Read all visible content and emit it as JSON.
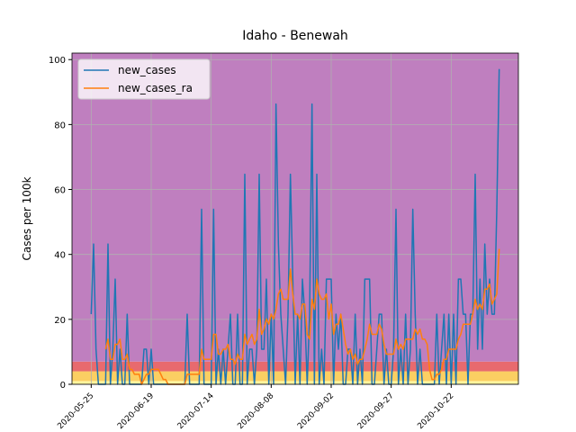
{
  "chart_data": {
    "type": "line",
    "title": "Idaho - Benewah",
    "ylabel": "Cases per 100k",
    "x": [
      "2020-05-25",
      "2020-05-26",
      "2020-05-27",
      "2020-05-28",
      "2020-05-29",
      "2020-05-30",
      "2020-05-31",
      "2020-06-01",
      "2020-06-02",
      "2020-06-03",
      "2020-06-04",
      "2020-06-05",
      "2020-06-06",
      "2020-06-07",
      "2020-06-08",
      "2020-06-09",
      "2020-06-10",
      "2020-06-11",
      "2020-06-12",
      "2020-06-13",
      "2020-06-14",
      "2020-06-15",
      "2020-06-16",
      "2020-06-17",
      "2020-06-18",
      "2020-06-19",
      "2020-06-20",
      "2020-06-21",
      "2020-06-22",
      "2020-06-23",
      "2020-06-24",
      "2020-06-25",
      "2020-06-26",
      "2020-06-27",
      "2020-06-28",
      "2020-06-29",
      "2020-06-30",
      "2020-07-01",
      "2020-07-02",
      "2020-07-03",
      "2020-07-04",
      "2020-07-05",
      "2020-07-06",
      "2020-07-07",
      "2020-07-08",
      "2020-07-09",
      "2020-07-10",
      "2020-07-11",
      "2020-07-12",
      "2020-07-13",
      "2020-07-14",
      "2020-07-15",
      "2020-07-16",
      "2020-07-17",
      "2020-07-18",
      "2020-07-19",
      "2020-07-20",
      "2020-07-21",
      "2020-07-22",
      "2020-07-23",
      "2020-07-24",
      "2020-07-25",
      "2020-07-26",
      "2020-07-27",
      "2020-07-28",
      "2020-07-29",
      "2020-07-30",
      "2020-07-31",
      "2020-08-01",
      "2020-08-02",
      "2020-08-03",
      "2020-08-04",
      "2020-08-05",
      "2020-08-06",
      "2020-08-07",
      "2020-08-08",
      "2020-08-09",
      "2020-08-10",
      "2020-08-11",
      "2020-08-12",
      "2020-08-13",
      "2020-08-14",
      "2020-08-15",
      "2020-08-16",
      "2020-08-17",
      "2020-08-18",
      "2020-08-19",
      "2020-08-20",
      "2020-08-21",
      "2020-08-22",
      "2020-08-23",
      "2020-08-24",
      "2020-08-25",
      "2020-08-26",
      "2020-08-27",
      "2020-08-28",
      "2020-08-29",
      "2020-08-30",
      "2020-08-31",
      "2020-09-01",
      "2020-09-02",
      "2020-09-03",
      "2020-09-04",
      "2020-09-05",
      "2020-09-06",
      "2020-09-07",
      "2020-09-08",
      "2020-09-09",
      "2020-09-10",
      "2020-09-11",
      "2020-09-12",
      "2020-09-13",
      "2020-09-14",
      "2020-09-15",
      "2020-09-16",
      "2020-09-17",
      "2020-09-18",
      "2020-09-19",
      "2020-09-20",
      "2020-09-21",
      "2020-09-22",
      "2020-09-23",
      "2020-09-24",
      "2020-09-25",
      "2020-09-26",
      "2020-09-27",
      "2020-09-28",
      "2020-09-29",
      "2020-09-30",
      "2020-10-01",
      "2020-10-02",
      "2020-10-03",
      "2020-10-04",
      "2020-10-05",
      "2020-10-06",
      "2020-10-07",
      "2020-10-08",
      "2020-10-09",
      "2020-10-10",
      "2020-10-11",
      "2020-10-12",
      "2020-10-13",
      "2020-10-14",
      "2020-10-15",
      "2020-10-16",
      "2020-10-17",
      "2020-10-18",
      "2020-10-19",
      "2020-10-20",
      "2020-10-21",
      "2020-10-22",
      "2020-10-23",
      "2020-10-24",
      "2020-10-25",
      "2020-10-26",
      "2020-10-27",
      "2020-10-28",
      "2020-10-29",
      "2020-10-30",
      "2020-10-31",
      "2020-11-01",
      "2020-11-02",
      "2020-11-03",
      "2020-11-04",
      "2020-11-05",
      "2020-11-06",
      "2020-11-07",
      "2020-11-08",
      "2020-11-09",
      "2020-11-10",
      "2020-11-11"
    ],
    "series": [
      {
        "name": "new_cases",
        "color": "#1f77b4",
        "values": [
          21.6,
          43.2,
          10.8,
          0,
          0,
          0,
          0,
          43.2,
          0,
          10.8,
          32.4,
          0,
          10.8,
          0,
          0,
          21.6,
          0,
          0,
          0,
          0,
          0,
          0,
          10.8,
          10.8,
          0,
          10.8,
          0,
          0,
          0,
          0,
          0,
          0,
          0,
          0,
          0,
          0,
          0,
          0,
          0,
          0,
          21.6,
          0,
          0,
          0,
          0,
          0,
          53.9,
          0,
          0,
          0,
          0,
          53.9,
          0,
          10.8,
          0,
          10.8,
          0,
          10.8,
          21.6,
          0,
          0,
          21.6,
          0,
          0,
          64.7,
          0,
          10.8,
          10.8,
          0,
          10.8,
          64.7,
          10.8,
          10.8,
          32.4,
          0,
          21.6,
          0,
          86.3,
          43.2,
          21.6,
          10.8,
          0,
          21.6,
          64.7,
          32.4,
          0,
          21.6,
          0,
          32.4,
          21.6,
          0,
          21.6,
          86.3,
          0,
          64.7,
          0,
          10.8,
          0,
          32.4,
          32.4,
          32.4,
          0,
          21.6,
          10.8,
          21.6,
          0,
          0,
          10.8,
          10.8,
          0,
          21.6,
          0,
          10.8,
          0,
          32.4,
          32.4,
          32.4,
          0,
          0,
          10.8,
          21.6,
          21.6,
          0,
          10.8,
          0,
          0,
          10.8,
          53.9,
          0,
          10.8,
          0,
          21.6,
          0,
          10.8,
          53.9,
          21.6,
          0,
          10.8,
          0,
          0,
          0,
          0,
          0,
          0,
          21.6,
          0,
          10.8,
          21.6,
          0,
          21.6,
          0,
          21.6,
          0,
          32.4,
          32.4,
          21.6,
          21.6,
          0,
          21.6,
          21.6,
          64.7,
          10.8,
          32.4,
          10.8,
          43.2,
          21.6,
          32.4,
          21.6,
          21.6,
          53.9,
          97.1
        ]
      },
      {
        "name": "new_cases_ra",
        "color": "#ff7f0e",
        "values": [
          null,
          null,
          null,
          null,
          null,
          null,
          10.8,
          13.9,
          7.7,
          7.7,
          12.3,
          12.3,
          13.9,
          7.7,
          7.7,
          9.3,
          4.6,
          4.6,
          3.1,
          3.1,
          3.1,
          0,
          1.5,
          3.1,
          3.1,
          4.6,
          4.6,
          4.6,
          4.6,
          3.1,
          1.5,
          1.5,
          0,
          0,
          0,
          0,
          0,
          0,
          0,
          0,
          3.1,
          3.1,
          3.1,
          3.1,
          3.1,
          3.1,
          10.8,
          7.7,
          7.7,
          7.7,
          7.7,
          15.4,
          15.4,
          9.3,
          9.3,
          10.8,
          10.8,
          12.3,
          7.7,
          7.7,
          6.2,
          9.3,
          7.7,
          7.7,
          15.4,
          12.3,
          13.9,
          15.4,
          12.3,
          13.9,
          23.1,
          15.4,
          17,
          20.1,
          18.5,
          21.6,
          20.1,
          23.1,
          27.8,
          29.3,
          26.2,
          26.2,
          26.2,
          35.5,
          27.8,
          21.6,
          21.6,
          20.1,
          24.7,
          24.7,
          15.4,
          13.9,
          26.2,
          23.1,
          32.4,
          27.8,
          26.2,
          26.2,
          27.8,
          20.1,
          24.7,
          15.4,
          18.5,
          18.5,
          21.6,
          17,
          12.3,
          9.3,
          10.8,
          7.7,
          9.3,
          6.2,
          7.7,
          7.7,
          10.8,
          13.9,
          18.5,
          15.4,
          15.4,
          15.4,
          18.5,
          17,
          12.3,
          9.3,
          9.3,
          9.3,
          9.3,
          13.9,
          10.8,
          12.3,
          10.8,
          13.9,
          13.9,
          13.9,
          13.9,
          17,
          15.4,
          17,
          13.9,
          13.9,
          12.3,
          4.6,
          1.5,
          1.5,
          3.1,
          3.1,
          4.6,
          7.7,
          7.7,
          10.8,
          10.8,
          10.8,
          10.8,
          13.9,
          15.4,
          18.5,
          18.5,
          18.5,
          18.5,
          21.6,
          26.2,
          23.1,
          24.7,
          23.1,
          29.3,
          29.3,
          30.9,
          24.7,
          26.2,
          27.8,
          41.7
        ]
      }
    ],
    "bands": [
      {
        "from": 0,
        "to": 1,
        "color": "#fff59d"
      },
      {
        "from": 1,
        "to": 4,
        "color": "#fbcf62"
      },
      {
        "from": 4,
        "to": 7,
        "color": "#e86a6e"
      },
      {
        "from": 7,
        "to": 102,
        "color": "#bf7fbf"
      }
    ],
    "xlim": [
      "2020-05-17",
      "2020-11-19"
    ],
    "xticks": [
      "2020-05-25",
      "2020-06-19",
      "2020-07-14",
      "2020-08-08",
      "2020-09-02",
      "2020-09-27",
      "2020-10-22"
    ],
    "ylim": [
      0,
      102
    ],
    "yticks": [
      0,
      20,
      40,
      60,
      80,
      100
    ],
    "grid": true,
    "legend": "upper-left"
  }
}
